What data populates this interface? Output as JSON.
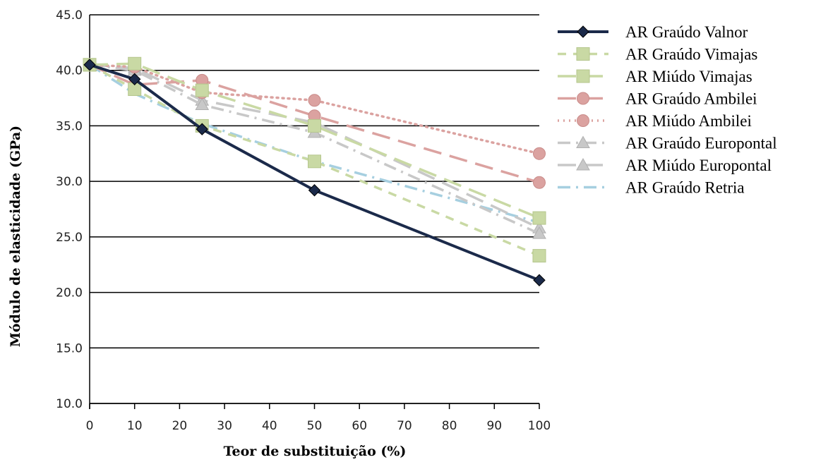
{
  "chart_data": {
    "type": "line",
    "title": "",
    "xlabel": "Teor de substituição (%)",
    "ylabel": "Módulo de elasticidade (GPa)",
    "xlim": [
      0,
      100
    ],
    "ylim": [
      10,
      45
    ],
    "xticks": [
      0,
      10,
      20,
      30,
      40,
      50,
      60,
      70,
      80,
      90,
      100
    ],
    "yticks": [
      "10.0",
      "15.0",
      "20.0",
      "25.0",
      "30.0",
      "35.0",
      "40.0",
      "45.0"
    ],
    "grid": "horizontal",
    "legend_position": "right",
    "series": [
      {
        "name": "AR Graúdo Valnor",
        "x": [
          0,
          10,
          25,
          50,
          100
        ],
        "y": [
          40.5,
          39.2,
          34.7,
          29.2,
          21.1
        ],
        "color": "#1b2a4a",
        "dash": "solid",
        "marker": "diamond"
      },
      {
        "name": "AR Graúdo Vimajas",
        "x": [
          0,
          10,
          25,
          50,
          100
        ],
        "y": [
          40.5,
          38.3,
          35.0,
          31.8,
          23.3
        ],
        "color": "#c9d9a4",
        "dash": "dash",
        "marker": "square"
      },
      {
        "name": "AR Miúdo Vimajas",
        "x": [
          0,
          10,
          25,
          50,
          100
        ],
        "y": [
          40.5,
          40.6,
          38.2,
          35.0,
          26.7
        ],
        "color": "#c9d9a4",
        "dash": "longdash",
        "marker": "square"
      },
      {
        "name": "AR Graúdo Ambilei",
        "x": [
          0,
          10,
          25,
          50,
          100
        ],
        "y": [
          40.5,
          38.7,
          39.1,
          35.9,
          29.9
        ],
        "color": "#dba2a0",
        "dash": "longdash",
        "marker": "circle"
      },
      {
        "name": "AR Miúdo Ambilei",
        "x": [
          0,
          10,
          25,
          50,
          100
        ],
        "y": [
          40.5,
          40.3,
          38.0,
          37.3,
          32.5
        ],
        "color": "#dba2a0",
        "dash": "dot",
        "marker": "circle"
      },
      {
        "name": "AR Graúdo Europontal",
        "x": [
          0,
          10,
          25,
          50,
          100
        ],
        "y": [
          40.5,
          40.0,
          36.9,
          34.4,
          25.3
        ],
        "color": "#c8c8c8",
        "dash": "dashdot",
        "marker": "triangle"
      },
      {
        "name": "AR Miúdo Europontal",
        "x": [
          0,
          10,
          25,
          50,
          100
        ],
        "y": [
          40.5,
          40.2,
          37.3,
          35.3,
          25.8
        ],
        "color": "#c8c8c8",
        "dash": "longdash",
        "marker": "triangle"
      },
      {
        "name": "AR Graúdo Retria",
        "x": [
          0,
          10,
          25,
          50,
          100
        ],
        "y": [
          40.5,
          37.9,
          35.2,
          31.8,
          26.3
        ],
        "color": "#a6cfe0",
        "dash": "dashdot",
        "marker": "none"
      }
    ]
  }
}
